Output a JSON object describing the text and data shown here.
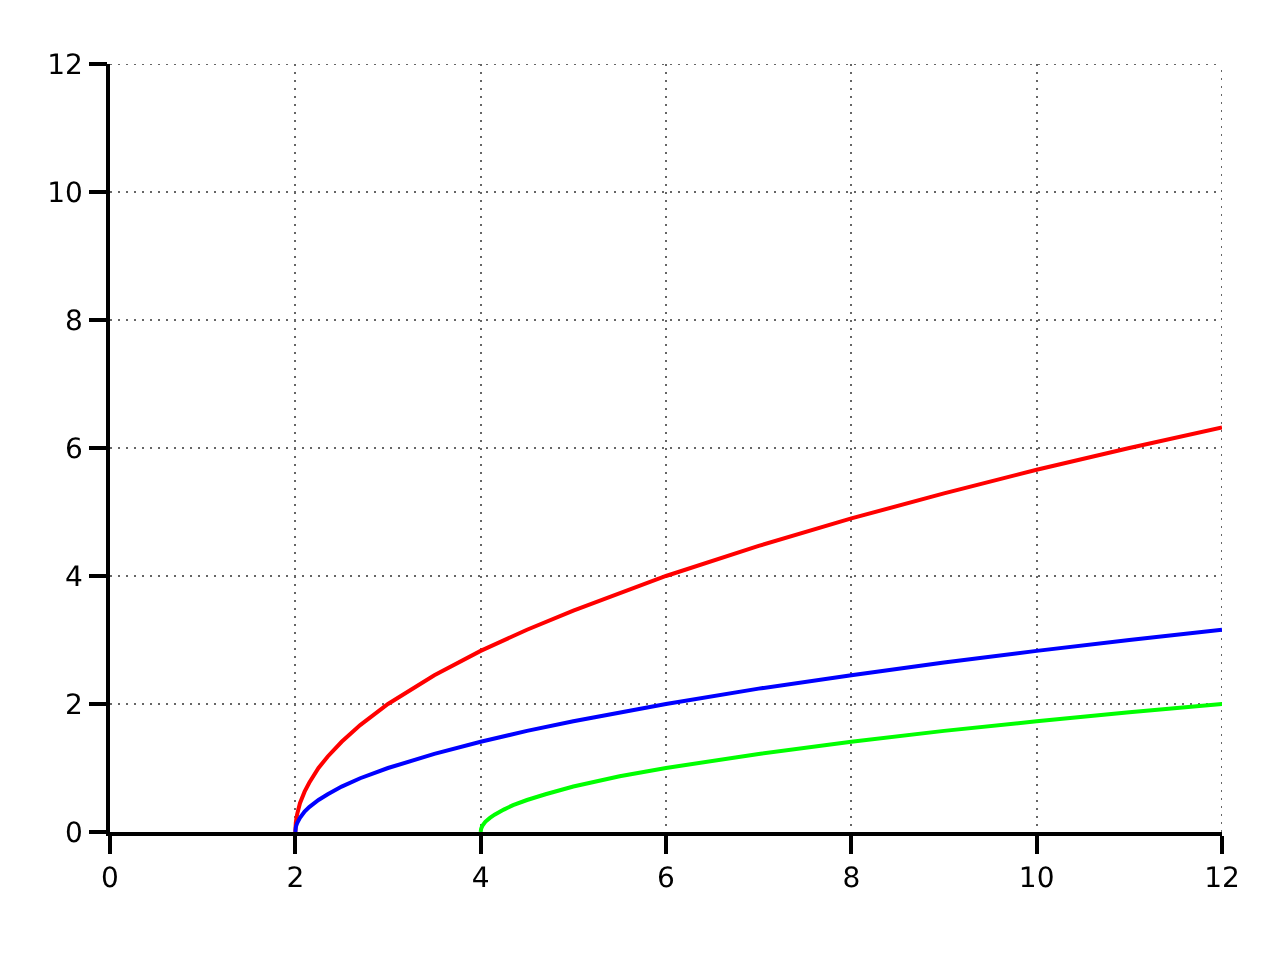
{
  "chart_data": {
    "type": "line",
    "grid": true,
    "marker": "none",
    "line_style": "solid",
    "xlim": [
      0,
      12
    ],
    "ylim": [
      0,
      12
    ],
    "xticks": [
      0,
      2,
      4,
      6,
      8,
      10,
      12
    ],
    "yticks": [
      0,
      2,
      4,
      6,
      8,
      10,
      12
    ],
    "series": [
      {
        "color": "#ff0000",
        "x": [
          2,
          2.005,
          2.01,
          2.02,
          2.05,
          2.1,
          2.15,
          2.25,
          2.35,
          2.5,
          2.7,
          3,
          3.5,
          4,
          4.5,
          5,
          6,
          7,
          8,
          9,
          10,
          11,
          12
        ],
        "values": [
          0,
          0.14,
          0.2,
          0.28,
          0.45,
          0.63,
          0.77,
          1,
          1.18,
          1.41,
          1.67,
          2,
          2.45,
          2.83,
          3.16,
          3.46,
          4,
          4.47,
          4.9,
          5.29,
          5.66,
          6,
          6.32
        ]
      },
      {
        "color": "#0000ff",
        "x": [
          2,
          2.005,
          2.01,
          2.02,
          2.05,
          2.1,
          2.15,
          2.25,
          2.35,
          2.5,
          2.7,
          3,
          3.5,
          4,
          4.5,
          5,
          6,
          7,
          8,
          9,
          10,
          11,
          12
        ],
        "values": [
          0,
          0.07,
          0.1,
          0.14,
          0.22,
          0.32,
          0.39,
          0.5,
          0.59,
          0.71,
          0.84,
          1,
          1.22,
          1.41,
          1.58,
          1.73,
          2,
          2.24,
          2.45,
          2.65,
          2.83,
          3,
          3.16
        ]
      },
      {
        "color": "#00ff00",
        "x": [
          4,
          4.005,
          4.01,
          4.02,
          4.05,
          4.1,
          4.15,
          4.25,
          4.35,
          4.5,
          4.7,
          5,
          5.5,
          6,
          7,
          8,
          9,
          10,
          11,
          12
        ],
        "values": [
          0,
          0.05,
          0.07,
          0.1,
          0.16,
          0.22,
          0.27,
          0.35,
          0.42,
          0.5,
          0.59,
          0.71,
          0.87,
          1,
          1.22,
          1.41,
          1.58,
          1.73,
          1.87,
          2
        ]
      }
    ]
  }
}
